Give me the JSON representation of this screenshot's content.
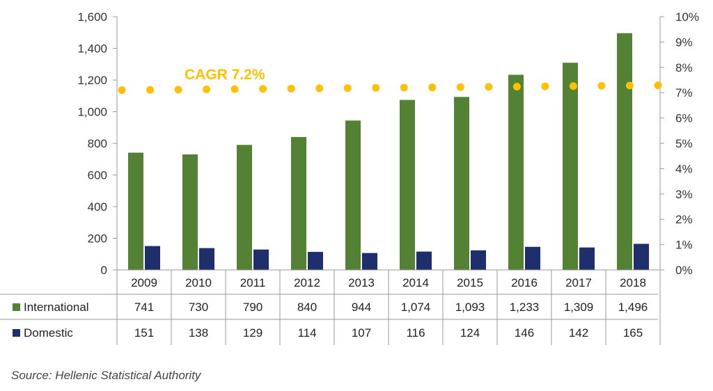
{
  "chart_data": {
    "type": "bar",
    "categories": [
      "2009",
      "2010",
      "2011",
      "2012",
      "2013",
      "2014",
      "2015",
      "2016",
      "2017",
      "2018"
    ],
    "series": [
      {
        "name": "International",
        "color": "#548235",
        "values": [
          741,
          730,
          790,
          840,
          944,
          1074,
          1093,
          1233,
          1309,
          1496
        ],
        "labels": [
          "741",
          "730",
          "790",
          "840",
          "944",
          "1,074",
          "1,093",
          "1,233",
          "1,309",
          "1,496"
        ]
      },
      {
        "name": "Domestic",
        "color": "#1f2f6b",
        "values": [
          151,
          138,
          129,
          114,
          107,
          116,
          124,
          146,
          142,
          165
        ],
        "labels": [
          "151",
          "138",
          "129",
          "114",
          "107",
          "116",
          "124",
          "146",
          "142",
          "165"
        ]
      }
    ],
    "cagr_line": {
      "label": "CAGR 7.2%",
      "color": "#ffc000",
      "values": [
        7.1,
        7.11,
        7.12,
        7.13,
        7.14,
        7.15,
        7.16,
        7.17,
        7.18,
        7.19,
        7.2,
        7.21,
        7.22,
        7.23,
        7.24,
        7.25,
        7.26,
        7.27,
        7.28,
        7.29
      ]
    },
    "ylim": [
      0,
      1600
    ],
    "y_ticks": [
      0,
      200,
      400,
      600,
      800,
      1000,
      1200,
      1400,
      1600
    ],
    "y_tick_labels": [
      "0",
      "200",
      "400",
      "600",
      "800",
      "1,000",
      "1,200",
      "1,400",
      "1,600"
    ],
    "y2lim": [
      0,
      10
    ],
    "y2_ticks": [
      0,
      1,
      2,
      3,
      4,
      5,
      6,
      7,
      8,
      9,
      10
    ],
    "y2_tick_labels": [
      "0%",
      "1%",
      "2%",
      "3%",
      "4%",
      "5%",
      "6%",
      "7%",
      "8%",
      "9%",
      "10%"
    ],
    "legend": "data-table",
    "source": "Source: Hellenic Statistical Authority"
  }
}
